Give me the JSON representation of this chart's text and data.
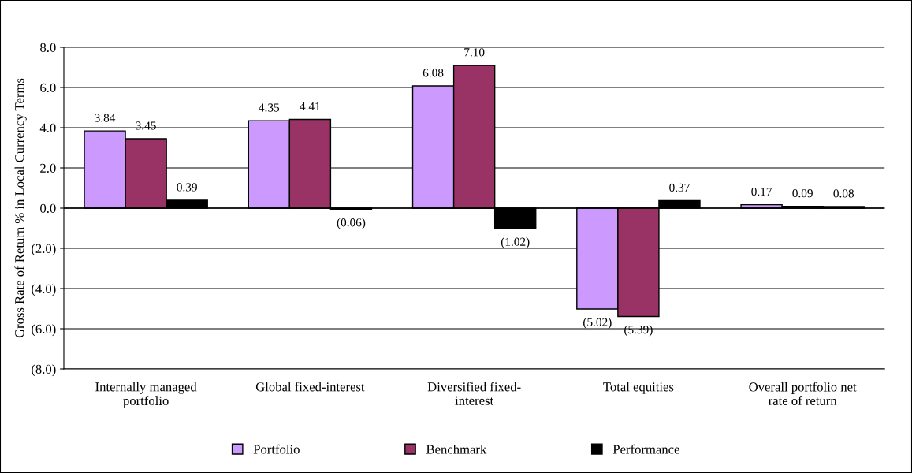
{
  "chart_data": {
    "type": "bar",
    "ylabel": "Gross Rate of Return % in Local Currency Terms",
    "categories": [
      "Internally managed\nportfolio",
      "Global fixed-interest",
      "Diversified fixed-\ninterest",
      "Total equities",
      "Overall portfolio net\nrate of return"
    ],
    "series": [
      {
        "name": "Portfolio",
        "color": "#cc99ff",
        "values": [
          3.84,
          4.35,
          6.08,
          -5.02,
          0.17
        ],
        "value_labels": [
          "3.84",
          "4.35",
          "6.08",
          "(5.02)",
          "0.17"
        ]
      },
      {
        "name": "Benchmark",
        "color": "#993366",
        "values": [
          3.45,
          4.41,
          7.1,
          -5.39,
          0.09
        ],
        "value_labels": [
          "3.45",
          "4.41",
          "7.10",
          "(5.39)",
          "0.09"
        ]
      },
      {
        "name": "Performance",
        "color": "#000000",
        "values": [
          0.39,
          -0.06,
          -1.02,
          0.37,
          0.08
        ],
        "value_labels": [
          "0.39",
          "(0.06)",
          "(1.02)",
          "0.37",
          "0.08"
        ]
      }
    ],
    "ylim": [
      -8,
      8
    ],
    "yticks": [
      {
        "value": -8,
        "label": "(8.0)"
      },
      {
        "value": -6,
        "label": "(6.0)"
      },
      {
        "value": -4,
        "label": "(4.0)"
      },
      {
        "value": -2,
        "label": "(2.0)"
      },
      {
        "value": 0,
        "label": "0.0"
      },
      {
        "value": 2,
        "label": "2.0"
      },
      {
        "value": 4,
        "label": "4.0"
      },
      {
        "value": 6,
        "label": "6.0"
      },
      {
        "value": 8,
        "label": "8.0"
      }
    ],
    "grid": "y",
    "legend": "bottom"
  }
}
